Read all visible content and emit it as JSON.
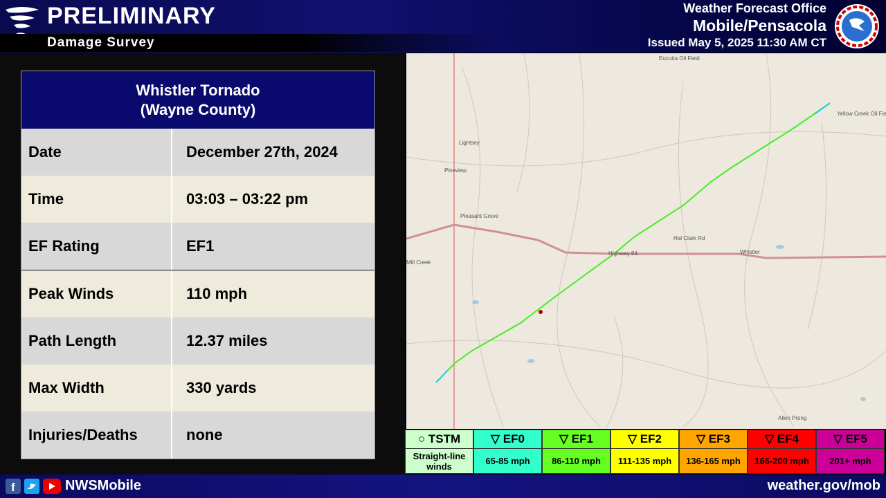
{
  "header": {
    "title": "PRELIMINARY",
    "subtitle": "Damage Survey",
    "office_line1": "Weather Forecast Office",
    "office_line2": "Mobile/Pensacola",
    "issued": "Issued May 5, 2025 11:30 AM CT"
  },
  "table": {
    "title_line1": "Whistler Tornado",
    "title_line2": "(Wayne County)",
    "rows": [
      [
        "Date",
        "December 27th, 2024"
      ],
      [
        "Time",
        "03:03 – 03:22 pm"
      ],
      [
        "EF Rating",
        "EF1"
      ],
      [
        "Peak Winds",
        "110 mph"
      ],
      [
        "Path Length",
        "12.37 miles"
      ],
      [
        "Max Width",
        "330 yards"
      ],
      [
        "Injuries/Deaths",
        "none"
      ]
    ]
  },
  "map": {
    "labels": [
      "Lightsey",
      "Pineview",
      "Pleasant Grove",
      "Mill Creek",
      "Highway 84",
      "Whistler",
      "Yellow Creek Oil Field",
      "Eucutta Oil Field",
      "Hal Clark Rd",
      "Allen Prong"
    ]
  },
  "legend": [
    {
      "name": "○ TSTM",
      "range": "Straight-line winds"
    },
    {
      "name": "▽ EF0",
      "range": "65-85 mph"
    },
    {
      "name": "▽ EF1",
      "range": "86-110 mph"
    },
    {
      "name": "▽ EF2",
      "range": "111-135 mph"
    },
    {
      "name": "▽ EF3",
      "range": "136-165 mph"
    },
    {
      "name": "▽ EF4",
      "range": "166-200 mph"
    },
    {
      "name": "▽ EF5",
      "range": "201+ mph"
    }
  ],
  "footer": {
    "handle": "NWSMobile",
    "url": "weather.gov/mob"
  }
}
